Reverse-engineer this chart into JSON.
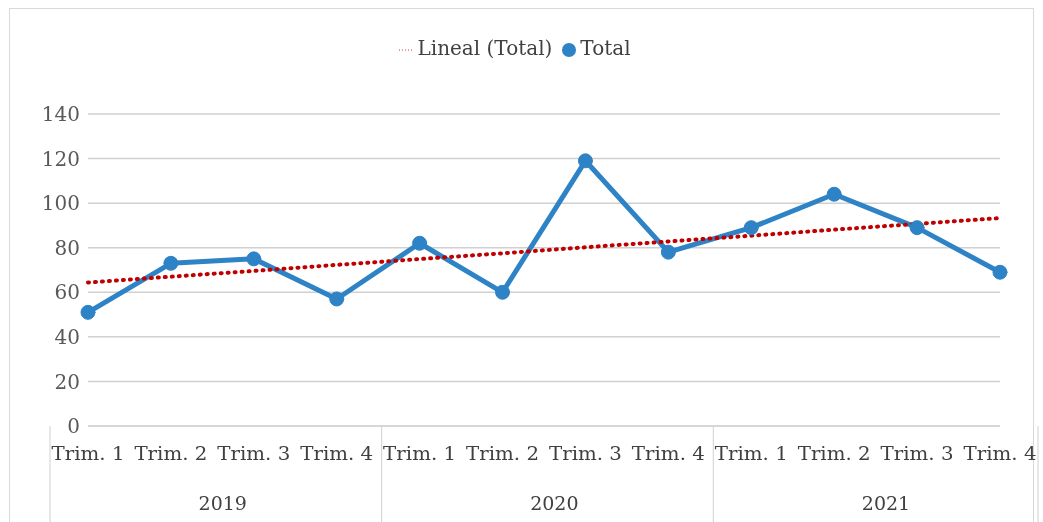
{
  "chart_data": {
    "type": "line",
    "categories": [
      "Trim. 1",
      "Trim. 2",
      "Trim. 3",
      "Trim. 4",
      "Trim. 1",
      "Trim. 2",
      "Trim. 3",
      "Trim. 4",
      "Trim. 1",
      "Trim. 2",
      "Trim. 3",
      "Trim. 4"
    ],
    "annotations": [
      "2019",
      "2020",
      "2021"
    ],
    "series": [
      {
        "name": "Total",
        "color": "#2e83c6",
        "marker": "circle",
        "line_style": "solid",
        "values": [
          51,
          73,
          75,
          57,
          82,
          60,
          119,
          78,
          89,
          104,
          89,
          69
        ]
      },
      {
        "name": "Lineal (Total)",
        "color": "#c00000",
        "marker": "none",
        "line_style": "dotted",
        "values": [
          64.4,
          67.0,
          69.6,
          72.3,
          74.9,
          77.5,
          80.2,
          82.8,
          85.4,
          88.1,
          90.7,
          93.3
        ]
      }
    ],
    "ylim": [
      0,
      140
    ],
    "yticks": [
      0,
      20,
      40,
      60,
      80,
      100,
      120,
      140
    ],
    "grid": "y",
    "legend": "top"
  }
}
